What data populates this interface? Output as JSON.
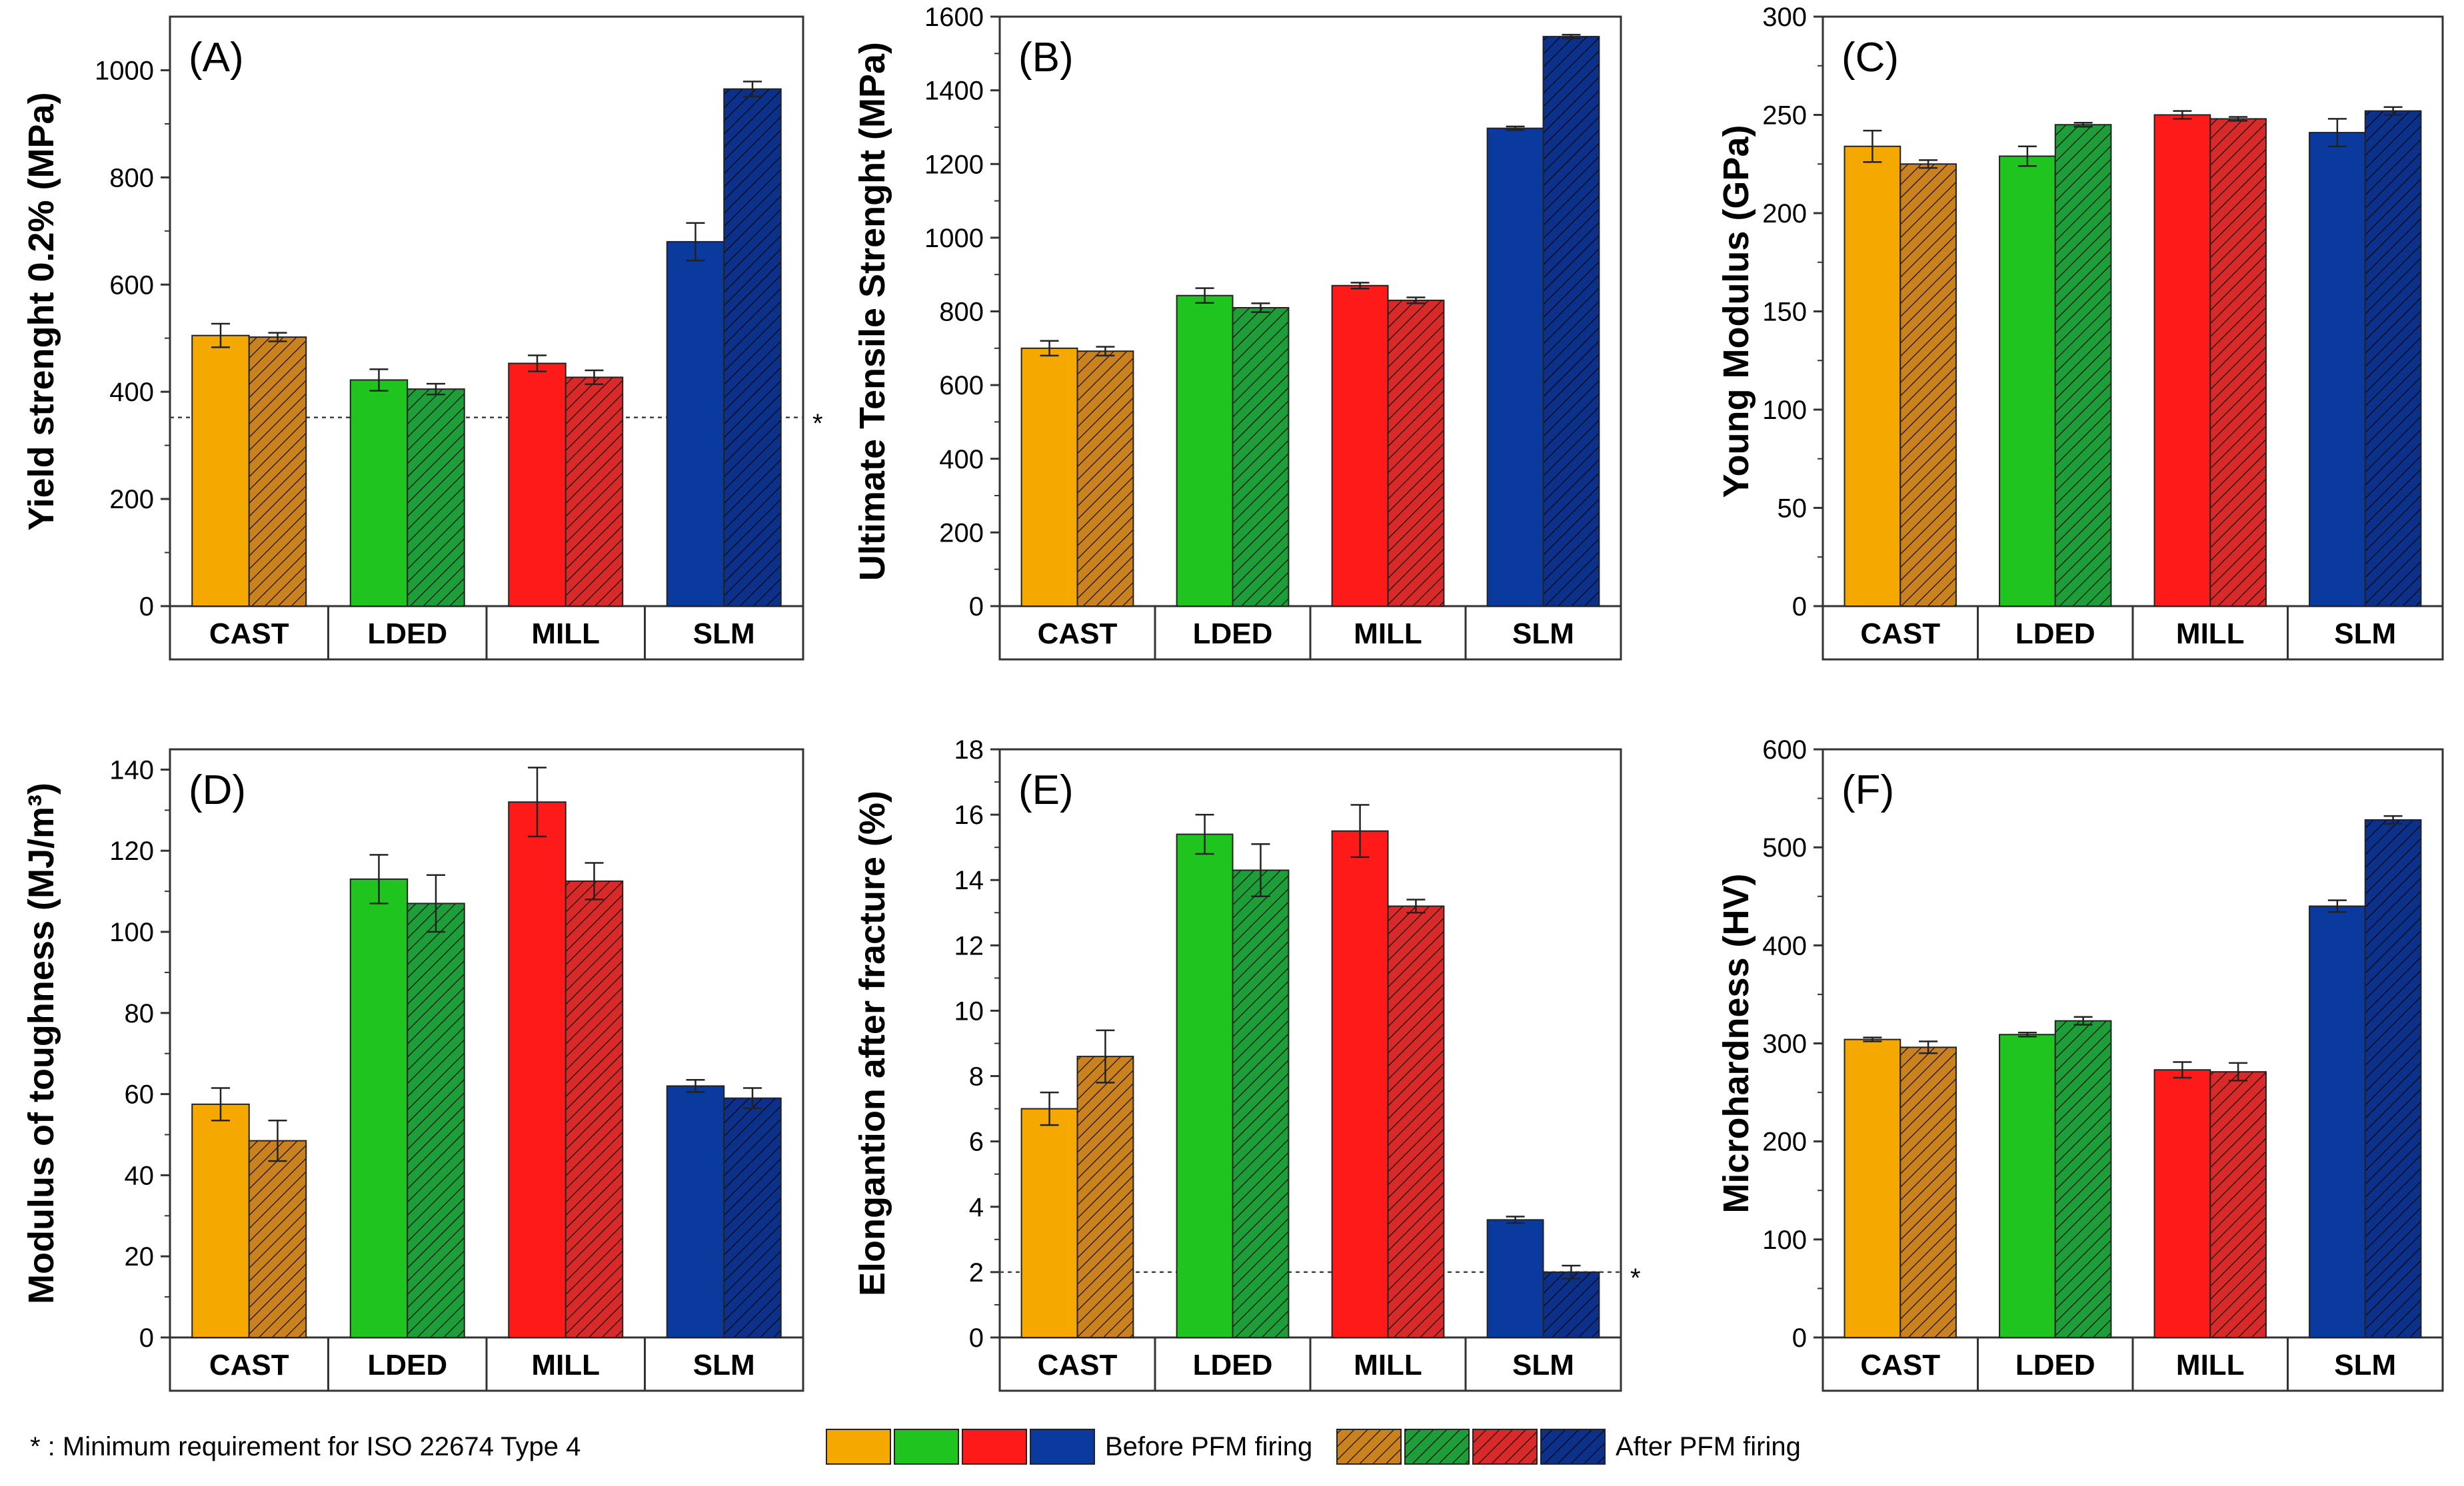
{
  "colors": {
    "CAST": "#F5A800",
    "LDED": "#1FC41F",
    "MILL": "#FF1A1A",
    "SLM": "#0A3A9E",
    "CAST_after": "#C9821E",
    "LDED_after": "#1E9E38",
    "MILL_after": "#D92A2A",
    "SLM_after": "#0C318A"
  },
  "footnote": "* : Minimum requirement for ISO 22674 Type 4",
  "legend": {
    "before_label": "Before PFM firing",
    "after_label": "After PFM firing"
  },
  "chart_data": [
    {
      "type": "bar",
      "panel": "(A)",
      "ylabel": "Yield strenght 0.2% (MPa)",
      "ylim": [
        0,
        1100
      ],
      "yticks": [
        0,
        200,
        400,
        600,
        800,
        1000
      ],
      "categories": [
        "CAST",
        "LDED",
        "MILL",
        "SLM"
      ],
      "series": [
        {
          "name": "Before PFM firing",
          "values": [
            505,
            422,
            453,
            680
          ],
          "errors": [
            22,
            20,
            15,
            35
          ]
        },
        {
          "name": "After PFM firing",
          "values": [
            502,
            405,
            427,
            965
          ],
          "errors": [
            8,
            10,
            13,
            14
          ]
        }
      ],
      "reference_line": {
        "value": 352,
        "marker": "*"
      }
    },
    {
      "type": "bar",
      "panel": "(B)",
      "ylabel": "Ultimate Tensile Strenght (MPa)",
      "ylim": [
        0,
        1600
      ],
      "yticks": [
        0,
        200,
        400,
        600,
        800,
        1000,
        1200,
        1400,
        1600
      ],
      "categories": [
        "CAST",
        "LDED",
        "MILL",
        "SLM"
      ],
      "series": [
        {
          "name": "Before PFM firing",
          "values": [
            700,
            843,
            870,
            1297
          ],
          "errors": [
            20,
            20,
            8,
            5
          ]
        },
        {
          "name": "After PFM firing",
          "values": [
            692,
            810,
            830,
            1546
          ],
          "errors": [
            12,
            12,
            8,
            5
          ]
        }
      ]
    },
    {
      "type": "bar",
      "panel": "(C)",
      "ylabel": "Young Modulus (GPa)",
      "ylim": [
        0,
        300
      ],
      "yticks": [
        0,
        50,
        100,
        150,
        200,
        250,
        300
      ],
      "categories": [
        "CAST",
        "LDED",
        "MILL",
        "SLM"
      ],
      "series": [
        {
          "name": "Before PFM firing",
          "values": [
            234,
            229,
            250,
            241
          ],
          "errors": [
            8,
            5,
            2,
            7
          ]
        },
        {
          "name": "After PFM firing",
          "values": [
            225,
            245,
            248,
            252
          ],
          "errors": [
            2,
            1,
            1,
            2
          ]
        }
      ]
    },
    {
      "type": "bar",
      "panel": "(D)",
      "ylabel": "Modulus of toughness (MJ/m³)",
      "ylim": [
        0,
        145
      ],
      "yticks": [
        0,
        20,
        40,
        60,
        80,
        100,
        120,
        140
      ],
      "categories": [
        "CAST",
        "LDED",
        "MILL",
        "SLM"
      ],
      "series": [
        {
          "name": "Before PFM firing",
          "values": [
            57.5,
            113,
            132,
            62
          ],
          "errors": [
            4,
            6,
            8.5,
            1.5
          ]
        },
        {
          "name": "After PFM firing",
          "values": [
            48.5,
            107,
            112.5,
            59
          ],
          "errors": [
            5,
            7,
            4.5,
            2.5
          ]
        }
      ]
    },
    {
      "type": "bar",
      "panel": "(E)",
      "ylabel": "Elongantion after fracture (%)",
      "ylim": [
        0,
        18
      ],
      "yticks": [
        0,
        2,
        4,
        6,
        8,
        10,
        12,
        14,
        16,
        18
      ],
      "categories": [
        "CAST",
        "LDED",
        "MILL",
        "SLM"
      ],
      "series": [
        {
          "name": "Before PFM firing",
          "values": [
            7.0,
            15.4,
            15.5,
            3.6
          ],
          "errors": [
            0.5,
            0.6,
            0.8,
            0.1
          ]
        },
        {
          "name": "After PFM firing",
          "values": [
            8.6,
            14.3,
            13.2,
            2.0
          ],
          "errors": [
            0.8,
            0.8,
            0.2,
            0.2
          ]
        }
      ],
      "reference_line": {
        "value": 2,
        "marker": "*"
      }
    },
    {
      "type": "bar",
      "panel": "(F)",
      "ylabel": "Microhardness (HV)",
      "ylim": [
        0,
        600
      ],
      "yticks": [
        0,
        100,
        200,
        300,
        400,
        500,
        600
      ],
      "categories": [
        "CAST",
        "LDED",
        "MILL",
        "SLM"
      ],
      "series": [
        {
          "name": "Before PFM firing",
          "values": [
            304,
            309,
            273,
            440
          ],
          "errors": [
            2,
            2,
            8,
            6
          ]
        },
        {
          "name": "After PFM firing",
          "values": [
            296,
            323,
            271,
            528
          ],
          "errors": [
            6,
            4,
            9,
            4
          ]
        }
      ]
    }
  ]
}
